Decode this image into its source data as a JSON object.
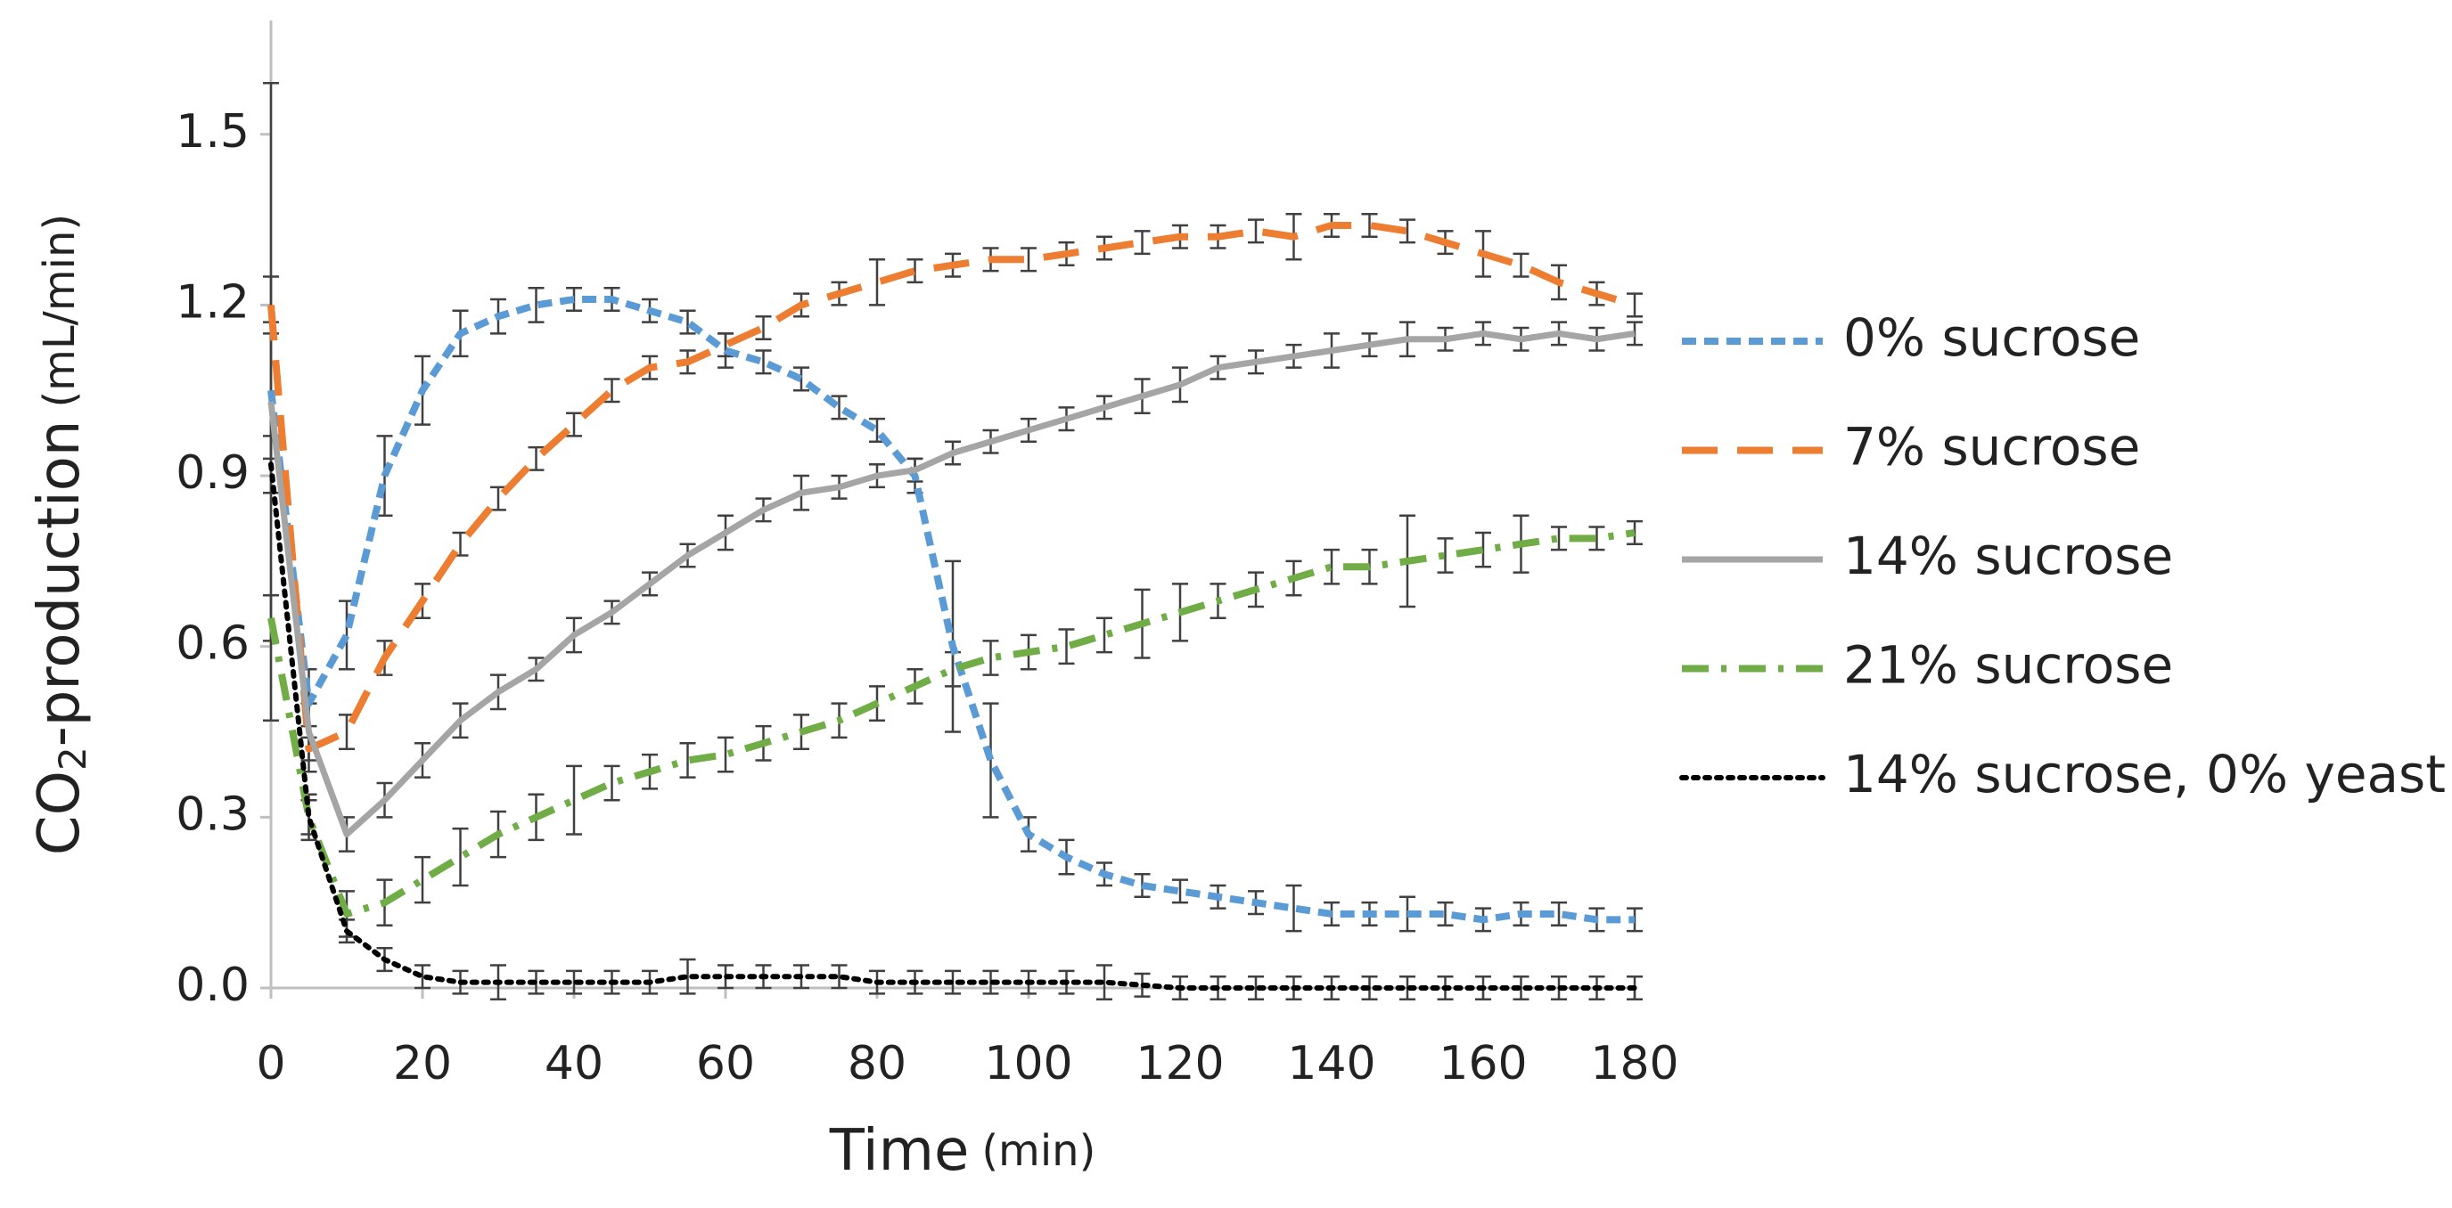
{
  "chart_data": {
    "type": "line",
    "x_label": {
      "main": "Time",
      "unit": "(min)"
    },
    "y_label": {
      "main": "CO",
      "sub": "2",
      "rest": "-production",
      "unit": "(mL/min)"
    },
    "x": [
      0,
      5,
      10,
      15,
      20,
      25,
      30,
      35,
      40,
      45,
      50,
      55,
      60,
      65,
      70,
      75,
      80,
      85,
      90,
      95,
      100,
      105,
      110,
      115,
      120,
      125,
      130,
      135,
      140,
      145,
      150,
      155,
      160,
      165,
      170,
      175,
      180
    ],
    "xlim": [
      0,
      180
    ],
    "xticks": [
      0,
      20,
      40,
      60,
      80,
      100,
      120,
      140,
      160,
      180
    ],
    "ylim": [
      0,
      1.7
    ],
    "yticks": [
      {
        "value": 0,
        "label": "0.0"
      },
      0.3,
      0.6,
      0.9,
      1.2,
      1.5
    ],
    "series": [
      {
        "name": "0% sucrose",
        "color": "#5b9bd5",
        "dash": "short",
        "values": [
          1.05,
          0.5,
          0.62,
          0.9,
          1.05,
          1.15,
          1.18,
          1.2,
          1.21,
          1.21,
          1.19,
          1.17,
          1.12,
          1.1,
          1.07,
          1.02,
          0.98,
          0.9,
          0.6,
          0.4,
          0.27,
          0.23,
          0.2,
          0.18,
          0.17,
          0.16,
          0.15,
          0.14,
          0.13,
          0.13,
          0.13,
          0.13,
          0.12,
          0.13,
          0.13,
          0.12,
          0.12
        ],
        "errors": [
          0.12,
          0.06,
          0.06,
          0.07,
          0.06,
          0.04,
          0.03,
          0.03,
          0.02,
          0.02,
          0.02,
          0.02,
          0.03,
          0.02,
          0.02,
          0.02,
          0.02,
          0.03,
          0.15,
          0.1,
          0.03,
          0.03,
          0.02,
          0.02,
          0.02,
          0.02,
          0.02,
          0.04,
          0.02,
          0.02,
          0.03,
          0.02,
          0.02,
          0.02,
          0.02,
          0.02,
          0.02
        ]
      },
      {
        "name": "7% sucrose",
        "color": "#ed7d31",
        "dash": "long",
        "values": [
          1.2,
          0.42,
          0.45,
          0.58,
          0.68,
          0.78,
          0.86,
          0.93,
          0.99,
          1.05,
          1.09,
          1.1,
          1.13,
          1.16,
          1.2,
          1.22,
          1.24,
          1.26,
          1.27,
          1.28,
          1.28,
          1.29,
          1.3,
          1.31,
          1.32,
          1.32,
          1.33,
          1.32,
          1.34,
          1.34,
          1.33,
          1.31,
          1.29,
          1.27,
          1.24,
          1.22,
          1.2
        ],
        "errors": [
          0.05,
          0.04,
          0.03,
          0.03,
          0.03,
          0.02,
          0.02,
          0.02,
          0.02,
          0.02,
          0.02,
          0.02,
          0.02,
          0.02,
          0.02,
          0.02,
          0.04,
          0.02,
          0.02,
          0.02,
          0.02,
          0.02,
          0.02,
          0.02,
          0.02,
          0.02,
          0.02,
          0.04,
          0.02,
          0.02,
          0.02,
          0.02,
          0.04,
          0.02,
          0.03,
          0.02,
          0.02
        ]
      },
      {
        "name": "14% sucrose",
        "color": "#a5a5a5",
        "dash": "solid",
        "values": [
          1.03,
          0.45,
          0.27,
          0.33,
          0.4,
          0.47,
          0.52,
          0.56,
          0.62,
          0.66,
          0.71,
          0.76,
          0.8,
          0.84,
          0.87,
          0.88,
          0.9,
          0.91,
          0.94,
          0.96,
          0.98,
          1.0,
          1.02,
          1.04,
          1.06,
          1.09,
          1.1,
          1.11,
          1.12,
          1.13,
          1.14,
          1.14,
          1.15,
          1.14,
          1.15,
          1.14,
          1.15
        ],
        "errors": [
          0.56,
          0.05,
          0.03,
          0.03,
          0.03,
          0.03,
          0.03,
          0.02,
          0.03,
          0.02,
          0.02,
          0.02,
          0.03,
          0.02,
          0.03,
          0.02,
          0.02,
          0.02,
          0.02,
          0.02,
          0.02,
          0.02,
          0.02,
          0.03,
          0.03,
          0.02,
          0.02,
          0.02,
          0.03,
          0.02,
          0.03,
          0.02,
          0.02,
          0.02,
          0.02,
          0.02,
          0.02
        ]
      },
      {
        "name": "21% sucrose",
        "color": "#70ad47",
        "dash": "dashdot",
        "values": [
          0.65,
          0.3,
          0.13,
          0.15,
          0.19,
          0.23,
          0.27,
          0.3,
          0.33,
          0.36,
          0.38,
          0.4,
          0.41,
          0.43,
          0.45,
          0.47,
          0.5,
          0.53,
          0.56,
          0.58,
          0.59,
          0.6,
          0.62,
          0.64,
          0.66,
          0.68,
          0.7,
          0.72,
          0.74,
          0.74,
          0.75,
          0.76,
          0.77,
          0.78,
          0.79,
          0.79,
          0.8
        ],
        "errors": [
          0.04,
          0.04,
          0.04,
          0.04,
          0.04,
          0.05,
          0.04,
          0.04,
          0.06,
          0.03,
          0.03,
          0.03,
          0.03,
          0.03,
          0.03,
          0.03,
          0.03,
          0.03,
          0.03,
          0.03,
          0.03,
          0.03,
          0.03,
          0.06,
          0.05,
          0.03,
          0.03,
          0.03,
          0.03,
          0.03,
          0.08,
          0.03,
          0.03,
          0.05,
          0.02,
          0.02,
          0.02
        ]
      },
      {
        "name": "14% sucrose, 0% yeast",
        "color": "#000000",
        "dash": "dot",
        "values": [
          0.92,
          0.3,
          0.1,
          0.05,
          0.02,
          0.01,
          0.01,
          0.01,
          0.01,
          0.01,
          0.01,
          0.02,
          0.02,
          0.02,
          0.02,
          0.02,
          0.01,
          0.01,
          0.01,
          0.01,
          0.01,
          0.01,
          0.01,
          0.005,
          0,
          0,
          0,
          0,
          0,
          0,
          0,
          0,
          0,
          0,
          0,
          0,
          0
        ],
        "errors": [
          0.05,
          0.03,
          0.02,
          0.02,
          0.02,
          0.02,
          0.03,
          0.02,
          0.02,
          0.02,
          0.02,
          0.03,
          0.02,
          0.02,
          0.02,
          0.02,
          0.02,
          0.02,
          0.02,
          0.02,
          0.02,
          0.02,
          0.03,
          0.02,
          0.02,
          0.02,
          0.02,
          0.02,
          0.02,
          0.02,
          0.02,
          0.02,
          0.02,
          0.02,
          0.02,
          0.02,
          0.02
        ]
      }
    ],
    "legend": "right",
    "grid": false
  }
}
